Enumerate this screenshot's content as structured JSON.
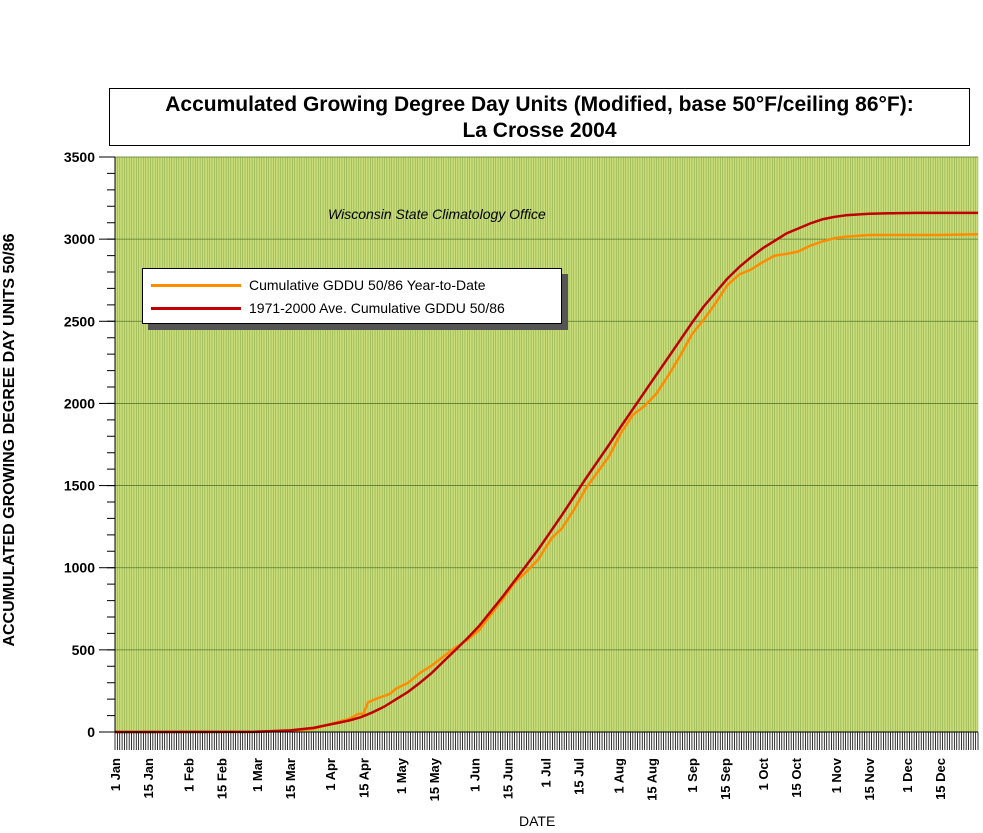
{
  "chart_data": {
    "type": "line",
    "title": "Accumulated Growing Degree Day Units (Modified, base 50°F/ceiling 86°F):",
    "subtitle": "La Crosse 2004",
    "annotation": "Wisconsin State Climatology Office",
    "xlabel": "DATE",
    "ylabel": "ACCUMULATED GROWING DEGREE DAY UNITS 50/86",
    "ylim": [
      0,
      3500
    ],
    "y_ticks": [
      0,
      500,
      1000,
      1500,
      2000,
      2500,
      3000,
      3500
    ],
    "x_range_days": [
      1,
      366
    ],
    "x_ticks": [
      {
        "label": "1 Jan",
        "day": 1
      },
      {
        "label": "15 Jan",
        "day": 15
      },
      {
        "label": "1 Feb",
        "day": 32
      },
      {
        "label": "15 Feb",
        "day": 46
      },
      {
        "label": "1 Mar",
        "day": 61
      },
      {
        "label": "15 Mar",
        "day": 75
      },
      {
        "label": "1 Apr",
        "day": 92
      },
      {
        "label": "15 Apr",
        "day": 106
      },
      {
        "label": "1 May",
        "day": 122
      },
      {
        "label": "15 May",
        "day": 136
      },
      {
        "label": "1 Jun",
        "day": 153
      },
      {
        "label": "15 Jun",
        "day": 167
      },
      {
        "label": "1 Jul",
        "day": 183
      },
      {
        "label": "15 Jul",
        "day": 197
      },
      {
        "label": "1 Aug",
        "day": 214
      },
      {
        "label": "15 Aug",
        "day": 228
      },
      {
        "label": "1 Sep",
        "day": 245
      },
      {
        "label": "15 Sep",
        "day": 259
      },
      {
        "label": "1 Oct",
        "day": 275
      },
      {
        "label": "15 Oct",
        "day": 289
      },
      {
        "label": "1 Nov",
        "day": 306
      },
      {
        "label": "15 Nov",
        "day": 320
      },
      {
        "label": "1 Dec",
        "day": 336
      },
      {
        "label": "15 Dec",
        "day": 350
      }
    ],
    "grid": true,
    "legend_position": "upper-left",
    "series": [
      {
        "name": "Cumulative GDDU 50/86 Year-to-Date",
        "color": "#FF8C00",
        "points": [
          [
            1,
            0
          ],
          [
            60,
            0
          ],
          [
            75,
            8
          ],
          [
            85,
            20
          ],
          [
            90,
            40
          ],
          [
            95,
            60
          ],
          [
            100,
            80
          ],
          [
            104,
            110
          ],
          [
            106,
            110
          ],
          [
            108,
            180
          ],
          [
            112,
            205
          ],
          [
            117,
            230
          ],
          [
            120,
            265
          ],
          [
            125,
            300
          ],
          [
            130,
            360
          ],
          [
            135,
            405
          ],
          [
            140,
            460
          ],
          [
            145,
            515
          ],
          [
            150,
            560
          ],
          [
            155,
            620
          ],
          [
            160,
            715
          ],
          [
            165,
            810
          ],
          [
            170,
            910
          ],
          [
            175,
            975
          ],
          [
            180,
            1050
          ],
          [
            183,
            1120
          ],
          [
            186,
            1185
          ],
          [
            190,
            1240
          ],
          [
            195,
            1350
          ],
          [
            200,
            1480
          ],
          [
            205,
            1580
          ],
          [
            210,
            1680
          ],
          [
            215,
            1820
          ],
          [
            220,
            1930
          ],
          [
            225,
            1985
          ],
          [
            230,
            2060
          ],
          [
            235,
            2170
          ],
          [
            240,
            2290
          ],
          [
            245,
            2420
          ],
          [
            250,
            2510
          ],
          [
            255,
            2610
          ],
          [
            260,
            2720
          ],
          [
            265,
            2785
          ],
          [
            270,
            2815
          ],
          [
            275,
            2860
          ],
          [
            280,
            2900
          ],
          [
            285,
            2910
          ],
          [
            290,
            2925
          ],
          [
            295,
            2960
          ],
          [
            300,
            2985
          ],
          [
            305,
            3005
          ],
          [
            310,
            3015
          ],
          [
            315,
            3020
          ],
          [
            320,
            3025
          ],
          [
            330,
            3025
          ],
          [
            350,
            3025
          ],
          [
            366,
            3030
          ]
        ]
      },
      {
        "name": "1971-2000 Ave. Cumulative GDDU 50/86",
        "color": "#C00000",
        "points": [
          [
            1,
            0
          ],
          [
            60,
            2
          ],
          [
            75,
            10
          ],
          [
            85,
            25
          ],
          [
            90,
            40
          ],
          [
            95,
            55
          ],
          [
            100,
            70
          ],
          [
            105,
            90
          ],
          [
            110,
            120
          ],
          [
            115,
            155
          ],
          [
            120,
            200
          ],
          [
            125,
            245
          ],
          [
            130,
            300
          ],
          [
            135,
            360
          ],
          [
            140,
            430
          ],
          [
            145,
            500
          ],
          [
            150,
            570
          ],
          [
            155,
            645
          ],
          [
            160,
            735
          ],
          [
            165,
            825
          ],
          [
            170,
            920
          ],
          [
            175,
            1015
          ],
          [
            180,
            1110
          ],
          [
            185,
            1215
          ],
          [
            190,
            1320
          ],
          [
            195,
            1430
          ],
          [
            200,
            1540
          ],
          [
            205,
            1645
          ],
          [
            210,
            1750
          ],
          [
            215,
            1860
          ],
          [
            220,
            1965
          ],
          [
            225,
            2070
          ],
          [
            230,
            2175
          ],
          [
            235,
            2280
          ],
          [
            240,
            2385
          ],
          [
            245,
            2490
          ],
          [
            250,
            2590
          ],
          [
            255,
            2675
          ],
          [
            260,
            2760
          ],
          [
            265,
            2830
          ],
          [
            270,
            2890
          ],
          [
            275,
            2945
          ],
          [
            280,
            2990
          ],
          [
            285,
            3035
          ],
          [
            290,
            3065
          ],
          [
            295,
            3095
          ],
          [
            300,
            3120
          ],
          [
            305,
            3135
          ],
          [
            310,
            3145
          ],
          [
            315,
            3150
          ],
          [
            320,
            3155
          ],
          [
            330,
            3158
          ],
          [
            340,
            3160
          ],
          [
            350,
            3160
          ],
          [
            366,
            3160
          ]
        ]
      }
    ]
  }
}
